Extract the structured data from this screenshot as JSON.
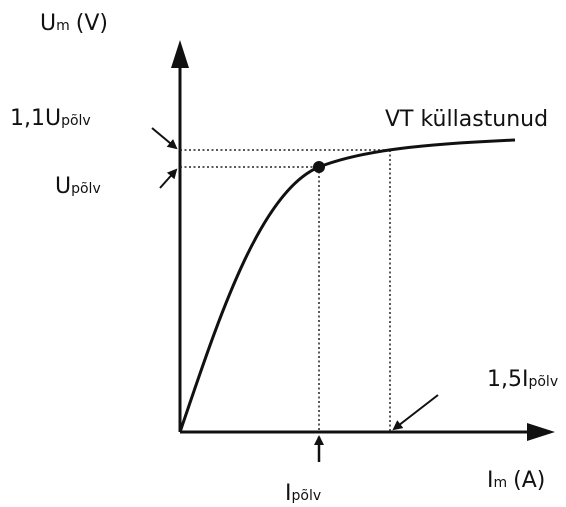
{
  "labels": {
    "y_axis": {
      "symbol": "U",
      "subscript": "m",
      "unit": "(V)"
    },
    "x_axis": {
      "symbol": "I",
      "subscript": "m",
      "unit": "(A)"
    },
    "u_110": {
      "prefix": "1,1U",
      "subscript": "põlv"
    },
    "u_knee": {
      "symbol": "U",
      "subscript": "põlv"
    },
    "i_knee": {
      "symbol": "I",
      "subscript": "põlv"
    },
    "i_150": {
      "prefix": "1,5I",
      "subscript": "põlv"
    },
    "saturated": "VT küllastunud"
  }
}
